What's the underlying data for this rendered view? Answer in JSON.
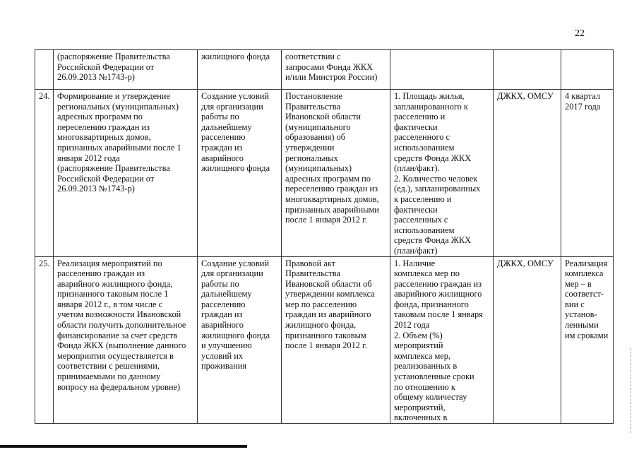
{
  "page_number": "22",
  "rows": [
    {
      "num": "",
      "activity": "(распоряжение Правительства\nРоссийской Федерации от\n26.09.2013  №1743-р)",
      "goal": "жилищного фонда",
      "document": "соответствии с\nзапросами Фонда ЖКХ\nи/или Минстроя России)",
      "indicators": "",
      "responsible": "",
      "deadline": ""
    },
    {
      "num": "24.",
      "activity": "Формирование и утверждение\nрегиональных (муниципальных)\nадресных программ по\nпереселению граждан из\nмногоквартирных домов,\nпризнанных аварийными после 1\nянваря 2012 года\n(распоряжение Правительства\nРоссийской Федерации от\n26.09.2013 №1743-р)",
      "goal": "Создание условий\nдля организации\nработы по\nдальнейшему\nрасселению\nграждан из\nаварийного\nжилищного фонда",
      "document": "Постановление\nПравительства\nИвановской области\n(муниципального\nобразования) об\nутверждении\nрегиональных\n(муниципальных)\nадресных программ по\nпереселению граждан из\nмногоквартирных домов,\nпризнанных аварийными\nпосле 1 января 2012 г.",
      "indicators": "1. Площадь жилья,\nзапланированного к\nрасселению и\nфактически\nрасселенного с\nиспользованием\nсредств Фонда ЖКХ\n(план/факт).\n2. Количество человек\n(ед.), запланированных\nк расселению и\nфактически\nрасселенных с\nиспользованием\nсредств Фонда ЖКХ\n(план/факт)",
      "responsible": "ДЖКХ, ОМСУ",
      "deadline": "4 квартал\n2017 года"
    },
    {
      "num": "25.",
      "activity": "Реализация мероприятий по\nрасселению граждан из\nаварийного жилищного фонда,\nпризнанного таковым после 1\nянваря 2012 г., в том числе с\nучетом возможности Ивановской\nобласти получить дополнительное\nфинансирование за счет средств\nФонда ЖКХ (выполнение данного\nмероприятия осуществляется в\nсоответствии с решениями,\nпринимаемыми по данному\nвопросу на федеральном уровне)",
      "goal": "Создание условий\nдля организации\nработы по\nдальнейшему\nрасселению\nграждан из\nаварийного\nжилищного фонда\nи улучшению\nусловий их\nпроживания",
      "document": "Правовой акт\nПравительства\nИвановской области об\nутверждении комплекса\nмер по расселению\nграждан из аварийного\nжилищного фонда,\nпризнанного таковым\nпосле 1 января 2012 г.",
      "indicators": "1. Наличие\nкомплекса мер по\nрасселению граждан из\nаварийного жилищного\nфонда, признанного\nтаковым после 1 января\n2012 года\n2. Объем (%)\nмероприятий\nкомплекса мер,\nреализованных в\nустановленные сроки\nпо отношению к\nобщему количеству\nмероприятий,\nвключенных в",
      "responsible": "ДЖКХ, ОМСУ",
      "deadline": "Реализация\nкомплекса\nмер – в\nсоответст-\nвии с\nустанов-\nленными\nим сроками"
    }
  ]
}
